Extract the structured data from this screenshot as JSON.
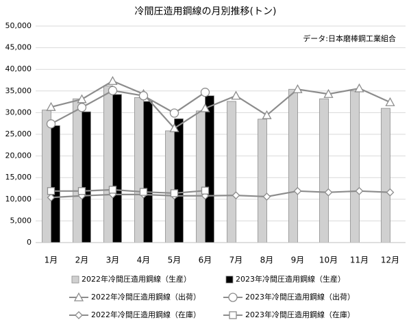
{
  "chart_data": {
    "type": "bar",
    "title": "冷間圧造用鋼線の月別推移(トン)",
    "annotation": "データ:日本磨棒鋼工業組合",
    "categories": [
      "1月",
      "2月",
      "3月",
      "4月",
      "5月",
      "6月",
      "7月",
      "8月",
      "9月",
      "10月",
      "11月",
      "12月"
    ],
    "ylim": [
      0,
      50000
    ],
    "yticks": [
      0,
      {
        "value": 5000,
        "label": "5,000"
      },
      {
        "value": 10000,
        "label": "10,000"
      },
      {
        "value": 15000,
        "label": "15,000"
      },
      {
        "value": 20000,
        "label": "20,000"
      },
      {
        "value": 25000,
        "label": "25,000"
      },
      {
        "value": 30000,
        "label": "30,000"
      },
      {
        "value": 35000,
        "label": "35,000"
      },
      {
        "value": 40000,
        "label": "40,000"
      },
      {
        "value": 45000,
        "label": "45,000"
      },
      {
        "value": 50000,
        "label": "50,000"
      }
    ],
    "grid": true,
    "series": [
      {
        "name": "2022年冷間圧造用鋼線（生産）",
        "type": "bar",
        "color": "#d0d0d0",
        "values": [
          30600,
          33200,
          36200,
          33500,
          25800,
          30400,
          32600,
          28500,
          35400,
          33200,
          35000,
          31000
        ]
      },
      {
        "name": "2023年冷間圧造用鋼線（生産）",
        "type": "bar",
        "color": "#000000",
        "values": [
          27000,
          30200,
          34200,
          32600,
          28600,
          33900,
          null,
          null,
          null,
          null,
          null,
          null
        ]
      },
      {
        "name": "2022年冷間圧造用鋼線（出荷）",
        "type": "line",
        "marker": "triangle",
        "color": "#8c8c8c",
        "values": [
          31300,
          33100,
          37300,
          34300,
          26400,
          31000,
          33900,
          29400,
          35400,
          34300,
          35600,
          32400
        ]
      },
      {
        "name": "2023年冷間圧造用鋼線（出荷）",
        "type": "line",
        "marker": "circle",
        "color": "#8c8c8c",
        "values": [
          27400,
          31200,
          35100,
          33900,
          29900,
          34700,
          null,
          null,
          null,
          null,
          null,
          null
        ]
      },
      {
        "name": "2022年冷間圧造用鋼線（在庫）",
        "type": "line",
        "marker": "diamond",
        "color": "#8c8c8c",
        "values": [
          10400,
          10800,
          11100,
          11100,
          10800,
          10800,
          10900,
          10600,
          11900,
          11600,
          11900,
          11600
        ]
      },
      {
        "name": "2023年冷間圧造用鋼線（在庫）",
        "type": "line",
        "marker": "square",
        "color": "#8c8c8c",
        "values": [
          11900,
          11900,
          12200,
          11700,
          11400,
          12000,
          null,
          null,
          null,
          null,
          null,
          null
        ]
      }
    ]
  }
}
